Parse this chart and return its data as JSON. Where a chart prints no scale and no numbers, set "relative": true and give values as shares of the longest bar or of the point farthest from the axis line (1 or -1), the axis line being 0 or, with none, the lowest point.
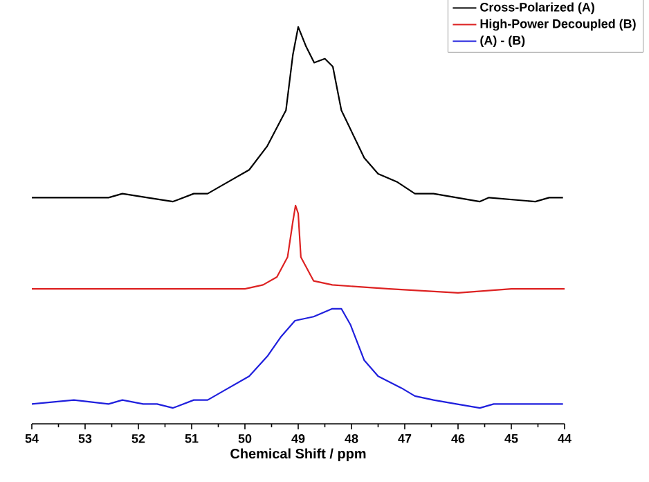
{
  "chart_data": {
    "type": "line",
    "relative": true,
    "xlabel": "Chemical Shift / ppm",
    "xlim": [
      54,
      44
    ],
    "xticks": [
      54,
      53,
      52,
      51,
      50,
      49,
      48,
      47,
      46,
      45,
      44
    ],
    "legend": "top right",
    "series": [
      {
        "name": "Cross-Polarized (A)",
        "color": "#000000",
        "x": [
          54.0,
          53.21,
          52.56,
          52.3,
          51.83,
          51.35,
          50.96,
          50.7,
          50.44,
          49.92,
          49.58,
          49.23,
          49.1,
          49.0,
          48.85,
          48.7,
          48.5,
          48.35,
          48.19,
          47.76,
          47.5,
          47.15,
          46.81,
          46.46,
          45.59,
          45.42,
          44.55,
          44.29,
          44.03
        ],
        "values": [
          0.57,
          0.57,
          0.57,
          0.58,
          0.57,
          0.56,
          0.58,
          0.58,
          0.6,
          0.64,
          0.7,
          0.79,
          0.93,
          1.0,
          0.95,
          0.91,
          0.92,
          0.9,
          0.79,
          0.67,
          0.63,
          0.61,
          0.58,
          0.58,
          0.56,
          0.57,
          0.56,
          0.57,
          0.57
        ]
      },
      {
        "name": "High-Power Decoupled (B)",
        "color": "#dd2222",
        "x": [
          54.0,
          52.5,
          51.0,
          50.0,
          49.66,
          49.4,
          49.2,
          49.1,
          49.05,
          49.0,
          48.95,
          48.71,
          48.36,
          47.29,
          46.0,
          45.0,
          44.0
        ],
        "values": [
          0.34,
          0.34,
          0.34,
          0.34,
          0.35,
          0.37,
          0.42,
          0.51,
          0.55,
          0.53,
          0.42,
          0.36,
          0.35,
          0.34,
          0.33,
          0.34,
          0.34
        ]
      },
      {
        "name": "(A) - (B)",
        "color": "#1f1fdd",
        "x": [
          54.0,
          53.21,
          52.56,
          52.3,
          51.91,
          51.65,
          51.35,
          50.96,
          50.7,
          50.44,
          49.92,
          49.58,
          49.32,
          49.06,
          48.71,
          48.36,
          48.19,
          48.02,
          47.76,
          47.5,
          47.06,
          46.81,
          46.46,
          46.03,
          45.59,
          45.33,
          44.55,
          44.29,
          44.03
        ],
        "values": [
          0.05,
          0.06,
          0.05,
          0.06,
          0.05,
          0.05,
          0.04,
          0.06,
          0.06,
          0.08,
          0.12,
          0.17,
          0.22,
          0.26,
          0.27,
          0.29,
          0.29,
          0.25,
          0.16,
          0.12,
          0.09,
          0.07,
          0.06,
          0.05,
          0.04,
          0.05,
          0.05,
          0.05,
          0.05
        ]
      }
    ]
  }
}
